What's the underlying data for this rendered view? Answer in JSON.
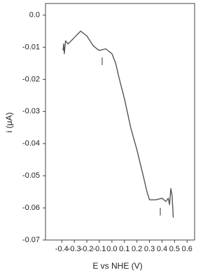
{
  "chart_data": {
    "type": "line",
    "xlabel": "E vs NHE (V)",
    "ylabel": "i (μA)",
    "xlim": [
      -0.53,
      0.66
    ],
    "ylim": [
      -0.07,
      0.0036
    ],
    "xticks": [
      -0.4,
      -0.3,
      -0.2,
      -0.1,
      {
        "value": 0,
        "label": "0.0"
      },
      0.1,
      0.2,
      0.3,
      0.4,
      0.5,
      0.6
    ],
    "yticks": [
      {
        "value": 0,
        "label": "0.0"
      },
      -0.01,
      -0.02,
      -0.03,
      -0.04,
      -0.05,
      -0.06,
      -0.07
    ],
    "x": [
      -0.39,
      -0.385,
      -0.38,
      -0.37,
      -0.35,
      -0.3,
      -0.25,
      -0.2,
      -0.15,
      -0.12,
      -0.1,
      -0.05,
      0.0,
      0.03,
      0.06,
      0.1,
      0.15,
      0.2,
      0.25,
      0.28,
      0.3,
      0.35,
      0.4,
      0.43,
      0.45,
      0.46,
      0.47,
      0.48,
      0.49
    ],
    "series": [
      {
        "color": "#555555",
        "values": [
          -0.011,
          -0.009,
          -0.012,
          -0.008,
          -0.009,
          -0.007,
          -0.005,
          -0.0065,
          -0.0095,
          -0.0105,
          -0.011,
          -0.0105,
          -0.012,
          -0.015,
          -0.02,
          -0.026,
          -0.035,
          -0.042,
          -0.05,
          -0.055,
          -0.0575,
          -0.0575,
          -0.057,
          -0.058,
          -0.057,
          -0.059,
          -0.054,
          -0.056,
          -0.063
        ]
      }
    ]
  }
}
